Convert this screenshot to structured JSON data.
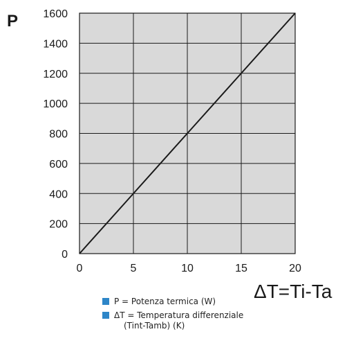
{
  "chart_data": {
    "type": "line",
    "ylabel": "P",
    "xlabel": "ΔT=Ti-Ta",
    "xlim": [
      0,
      20
    ],
    "ylim": [
      0,
      1600
    ],
    "x_ticks": [
      0,
      5,
      10,
      15,
      20
    ],
    "y_ticks": [
      0,
      200,
      400,
      600,
      800,
      1000,
      1200,
      1400,
      1600
    ],
    "grid": true,
    "series": [
      {
        "x": [
          0,
          5,
          10,
          15,
          20
        ],
        "values": [
          0,
          400,
          800,
          1200,
          1600
        ],
        "color": "#1a1a1a"
      }
    ],
    "plot_background": "#d9d9d9",
    "legend": [
      {
        "text": "P = Potenza termica (W)",
        "color": "#2e86c8"
      },
      {
        "text": "ΔT = Temperatura differenziale",
        "text2": "(Tint-Tamb) (K)",
        "color": "#2e86c8"
      }
    ]
  }
}
